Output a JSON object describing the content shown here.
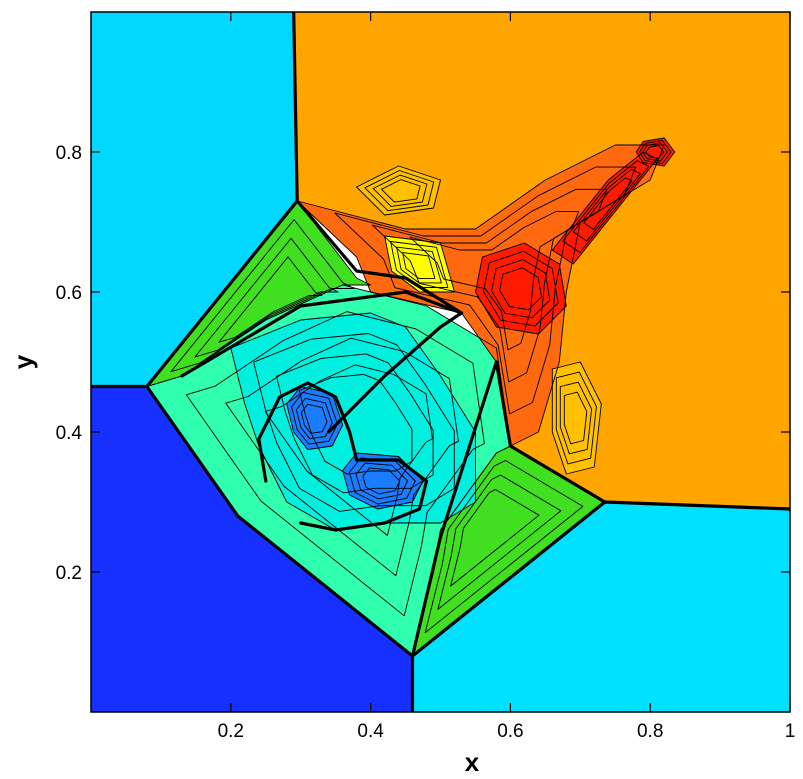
{
  "chart_data": {
    "type": "heatmap",
    "xlabel": "x",
    "ylabel": "y",
    "xlim": [
      0,
      1
    ],
    "ylim": [
      0,
      1
    ],
    "x_ticks": [
      0.2,
      0.4,
      0.6,
      0.8,
      1
    ],
    "x_tick_labels": [
      "0.2",
      "0.4",
      "0.6",
      "0.8",
      "1"
    ],
    "y_ticks": [
      0.2,
      0.4,
      0.6,
      0.8
    ],
    "y_tick_labels": [
      "0.2",
      "0.4",
      "0.6",
      "0.8"
    ],
    "grid": false,
    "legend": "none",
    "colors": {
      "top_left_quadrant": "#00d8ff",
      "top_right_quadrant": "#ffa500",
      "bottom_left_quadrant": "#1530ff",
      "bottom_right_quadrant": "#00e0ff",
      "mid_green": "#40e020",
      "mid_cyan_green": "#30ffb0",
      "core_cyan": "#00f0e0",
      "vortex_blue": "#1a7cff",
      "jet_red": "#ff1a00",
      "jet_orange": "#ff6a10",
      "jet_yellow": "#ffff00",
      "jet_amber": "#ffc000"
    },
    "regions": [
      {
        "name": "top-left-quadrant",
        "color": "top_left_quadrant",
        "points": [
          [
            0,
            1
          ],
          [
            0.29,
            1
          ],
          [
            0.295,
            0.73
          ],
          [
            0.08,
            0.465
          ],
          [
            0,
            0.465
          ]
        ]
      },
      {
        "name": "top-right-quadrant",
        "color": "top_right_quadrant",
        "points": [
          [
            0.29,
            1
          ],
          [
            1,
            1
          ],
          [
            1,
            0.29
          ],
          [
            0.735,
            0.3
          ],
          [
            0.6,
            0.38
          ],
          [
            0.58,
            0.5
          ],
          [
            0.53,
            0.57
          ],
          [
            0.4,
            0.6
          ],
          [
            0.38,
            0.65
          ],
          [
            0.295,
            0.73
          ]
        ]
      },
      {
        "name": "bottom-left-quadrant",
        "color": "bottom_left_quadrant",
        "points": [
          [
            0,
            0
          ],
          [
            0.46,
            0
          ],
          [
            0.46,
            0.08
          ],
          [
            0.21,
            0.28
          ],
          [
            0.08,
            0.465
          ],
          [
            0,
            0.465
          ]
        ]
      },
      {
        "name": "bottom-right-quadrant",
        "color": "bottom_right_quadrant",
        "points": [
          [
            0.46,
            0
          ],
          [
            1,
            0
          ],
          [
            1,
            0.29
          ],
          [
            0.735,
            0.3
          ],
          [
            0.46,
            0.08
          ]
        ]
      },
      {
        "name": "upper-left-shock-band",
        "color": "mid_green",
        "points": [
          [
            0.08,
            0.465
          ],
          [
            0.295,
            0.73
          ],
          [
            0.38,
            0.62
          ],
          [
            0.4,
            0.61
          ],
          [
            0.36,
            0.61
          ],
          [
            0.25,
            0.56
          ],
          [
            0.13,
            0.48
          ]
        ]
      },
      {
        "name": "lower-right-shock-band",
        "color": "mid_green",
        "points": [
          [
            0.46,
            0.08
          ],
          [
            0.735,
            0.3
          ],
          [
            0.6,
            0.38
          ],
          [
            0.58,
            0.37
          ],
          [
            0.5,
            0.26
          ],
          [
            0.49,
            0.2
          ]
        ]
      },
      {
        "name": "central-band",
        "color": "mid_cyan_green",
        "points": [
          [
            0.08,
            0.465
          ],
          [
            0.13,
            0.48
          ],
          [
            0.25,
            0.56
          ],
          [
            0.36,
            0.61
          ],
          [
            0.48,
            0.58
          ],
          [
            0.58,
            0.52
          ],
          [
            0.6,
            0.38
          ],
          [
            0.58,
            0.37
          ],
          [
            0.5,
            0.26
          ],
          [
            0.49,
            0.2
          ],
          [
            0.46,
            0.08
          ],
          [
            0.21,
            0.28
          ]
        ]
      },
      {
        "name": "central-cyan-core",
        "color": "core_cyan",
        "points": [
          [
            0.2,
            0.52
          ],
          [
            0.3,
            0.56
          ],
          [
            0.4,
            0.57
          ],
          [
            0.45,
            0.55
          ],
          [
            0.5,
            0.48
          ],
          [
            0.55,
            0.4
          ],
          [
            0.55,
            0.3
          ],
          [
            0.5,
            0.27
          ],
          [
            0.42,
            0.27
          ],
          [
            0.35,
            0.26
          ],
          [
            0.28,
            0.3
          ],
          [
            0.24,
            0.38
          ],
          [
            0.22,
            0.44
          ]
        ]
      },
      {
        "name": "left-vortex",
        "color": "vortex_blue",
        "points": [
          [
            0.3,
            0.465
          ],
          [
            0.345,
            0.455
          ],
          [
            0.36,
            0.41
          ],
          [
            0.345,
            0.38
          ],
          [
            0.31,
            0.375
          ],
          [
            0.29,
            0.4
          ],
          [
            0.28,
            0.44
          ]
        ]
      },
      {
        "name": "right-vortex",
        "color": "vortex_blue",
        "points": [
          [
            0.38,
            0.37
          ],
          [
            0.44,
            0.365
          ],
          [
            0.475,
            0.33
          ],
          [
            0.46,
            0.3
          ],
          [
            0.41,
            0.29
          ],
          [
            0.37,
            0.31
          ],
          [
            0.36,
            0.345
          ]
        ]
      },
      {
        "name": "jet-orange-region",
        "color": "jet_orange",
        "points": [
          [
            0.295,
            0.73
          ],
          [
            0.45,
            0.69
          ],
          [
            0.55,
            0.69
          ],
          [
            0.65,
            0.76
          ],
          [
            0.75,
            0.81
          ],
          [
            0.82,
            0.81
          ],
          [
            0.8,
            0.76
          ],
          [
            0.7,
            0.7
          ],
          [
            0.68,
            0.6
          ],
          [
            0.67,
            0.5
          ],
          [
            0.64,
            0.4
          ],
          [
            0.6,
            0.38
          ],
          [
            0.58,
            0.5
          ],
          [
            0.53,
            0.57
          ],
          [
            0.4,
            0.6
          ],
          [
            0.38,
            0.65
          ]
        ]
      },
      {
        "name": "jet-amber-lobe",
        "color": "jet_amber",
        "points": [
          [
            0.38,
            0.75
          ],
          [
            0.44,
            0.78
          ],
          [
            0.5,
            0.76
          ],
          [
            0.49,
            0.72
          ],
          [
            0.42,
            0.71
          ]
        ]
      },
      {
        "name": "jet-yellow-band",
        "color": "jet_yellow",
        "points": [
          [
            0.42,
            0.68
          ],
          [
            0.5,
            0.67
          ],
          [
            0.52,
            0.6
          ],
          [
            0.47,
            0.6
          ],
          [
            0.43,
            0.63
          ]
        ]
      },
      {
        "name": "jet-red-core",
        "color": "jet_red",
        "points": [
          [
            0.56,
            0.65
          ],
          [
            0.62,
            0.67
          ],
          [
            0.67,
            0.64
          ],
          [
            0.68,
            0.58
          ],
          [
            0.64,
            0.54
          ],
          [
            0.58,
            0.55
          ],
          [
            0.55,
            0.6
          ]
        ]
      },
      {
        "name": "jet-red-arm",
        "color": "jet_red",
        "points": [
          [
            0.66,
            0.66
          ],
          [
            0.74,
            0.76
          ],
          [
            0.79,
            0.8
          ],
          [
            0.81,
            0.79
          ],
          [
            0.77,
            0.74
          ],
          [
            0.69,
            0.64
          ]
        ]
      },
      {
        "name": "jet-tip-bulb",
        "color": "jet_red",
        "points": [
          [
            0.79,
            0.815
          ],
          [
            0.82,
            0.82
          ],
          [
            0.835,
            0.8
          ],
          [
            0.82,
            0.78
          ],
          [
            0.79,
            0.785
          ],
          [
            0.78,
            0.8
          ]
        ]
      },
      {
        "name": "right-amber-streak",
        "color": "jet_amber",
        "points": [
          [
            0.66,
            0.49
          ],
          [
            0.7,
            0.5
          ],
          [
            0.73,
            0.44
          ],
          [
            0.72,
            0.35
          ],
          [
            0.68,
            0.34
          ],
          [
            0.66,
            0.4
          ]
        ]
      }
    ],
    "shock_lines": [
      {
        "name": "shock-upper-left",
        "points": [
          [
            0.29,
            1
          ],
          [
            0.295,
            0.73
          ],
          [
            0.08,
            0.465
          ],
          [
            0,
            0.465
          ]
        ]
      },
      {
        "name": "shock-lower-left",
        "points": [
          [
            0.08,
            0.465
          ],
          [
            0.21,
            0.28
          ],
          [
            0.46,
            0.08
          ],
          [
            0.46,
            0
          ]
        ]
      },
      {
        "name": "shock-lower-right",
        "points": [
          [
            0.46,
            0.08
          ],
          [
            0.735,
            0.3
          ],
          [
            1,
            0.29
          ]
        ]
      },
      {
        "name": "shock-upper-inner",
        "points": [
          [
            0.295,
            0.73
          ],
          [
            0.38,
            0.63
          ],
          [
            0.45,
            0.62
          ],
          [
            0.53,
            0.57
          ]
        ]
      },
      {
        "name": "shock-right-inner",
        "points": [
          [
            0.735,
            0.3
          ],
          [
            0.6,
            0.38
          ],
          [
            0.58,
            0.5
          ]
        ]
      },
      {
        "name": "slip-line-diagonal",
        "points": [
          [
            0.46,
            0.08
          ],
          [
            0.5,
            0.25
          ],
          [
            0.58,
            0.5
          ]
        ]
      },
      {
        "name": "slip-line-left-arc",
        "points": [
          [
            0.13,
            0.48
          ],
          [
            0.3,
            0.58
          ],
          [
            0.45,
            0.6
          ],
          [
            0.53,
            0.57
          ]
        ]
      },
      {
        "name": "mushroom-cap-outline",
        "points": [
          [
            0.25,
            0.33
          ],
          [
            0.24,
            0.39
          ],
          [
            0.27,
            0.45
          ],
          [
            0.31,
            0.47
          ],
          [
            0.35,
            0.45
          ],
          [
            0.37,
            0.4
          ],
          [
            0.38,
            0.36
          ],
          [
            0.44,
            0.36
          ],
          [
            0.48,
            0.33
          ],
          [
            0.47,
            0.29
          ],
          [
            0.42,
            0.27
          ],
          [
            0.35,
            0.26
          ],
          [
            0.3,
            0.27
          ]
        ]
      },
      {
        "name": "mushroom-stem",
        "points": [
          [
            0.34,
            0.4
          ],
          [
            0.42,
            0.48
          ],
          [
            0.5,
            0.55
          ],
          [
            0.53,
            0.57
          ]
        ]
      }
    ]
  }
}
